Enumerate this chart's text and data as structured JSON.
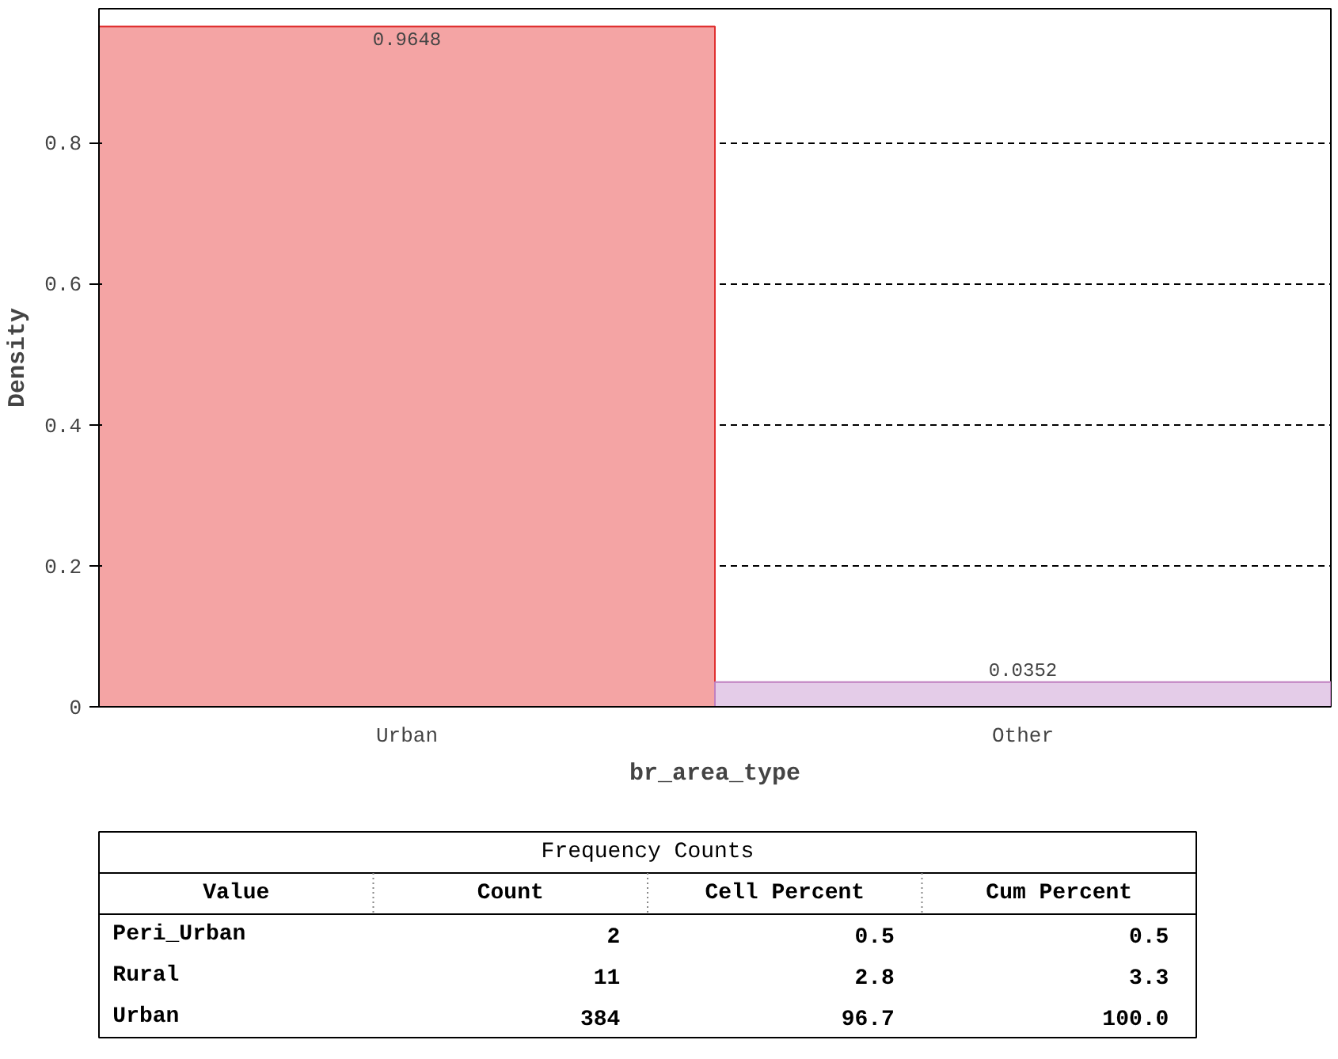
{
  "chart_data": [
    {
      "type": "bar",
      "xlabel": "br_area_type",
      "ylabel": "Density",
      "categories": [
        "Urban",
        "Other"
      ],
      "values": [
        0.9648,
        0.0352
      ],
      "colors": [
        "#f4a4a4",
        "#e4cce8"
      ],
      "data_labels": true,
      "ylim": [
        0,
        0.99
      ],
      "yticks": [
        {
          "value": 0,
          "label": "0"
        },
        {
          "value": 0.2,
          "label": "0.2"
        },
        {
          "value": 0.4,
          "label": "0.4"
        },
        {
          "value": 0.6,
          "label": "0.6"
        },
        {
          "value": 0.8,
          "label": "0.8"
        }
      ],
      "grid": "y",
      "line_style": "dashed"
    },
    {
      "type": "other",
      "title": "Frequency Counts",
      "annotations": [
        "Value",
        "Count",
        "Cell Percent",
        "Cum Percent",
        "Peri_Urban",
        "2",
        "0.5",
        "0.5",
        "Rural",
        "11",
        "2.8",
        "3.3",
        "Urban",
        "384",
        "96.7",
        "100.0"
      ]
    }
  ]
}
